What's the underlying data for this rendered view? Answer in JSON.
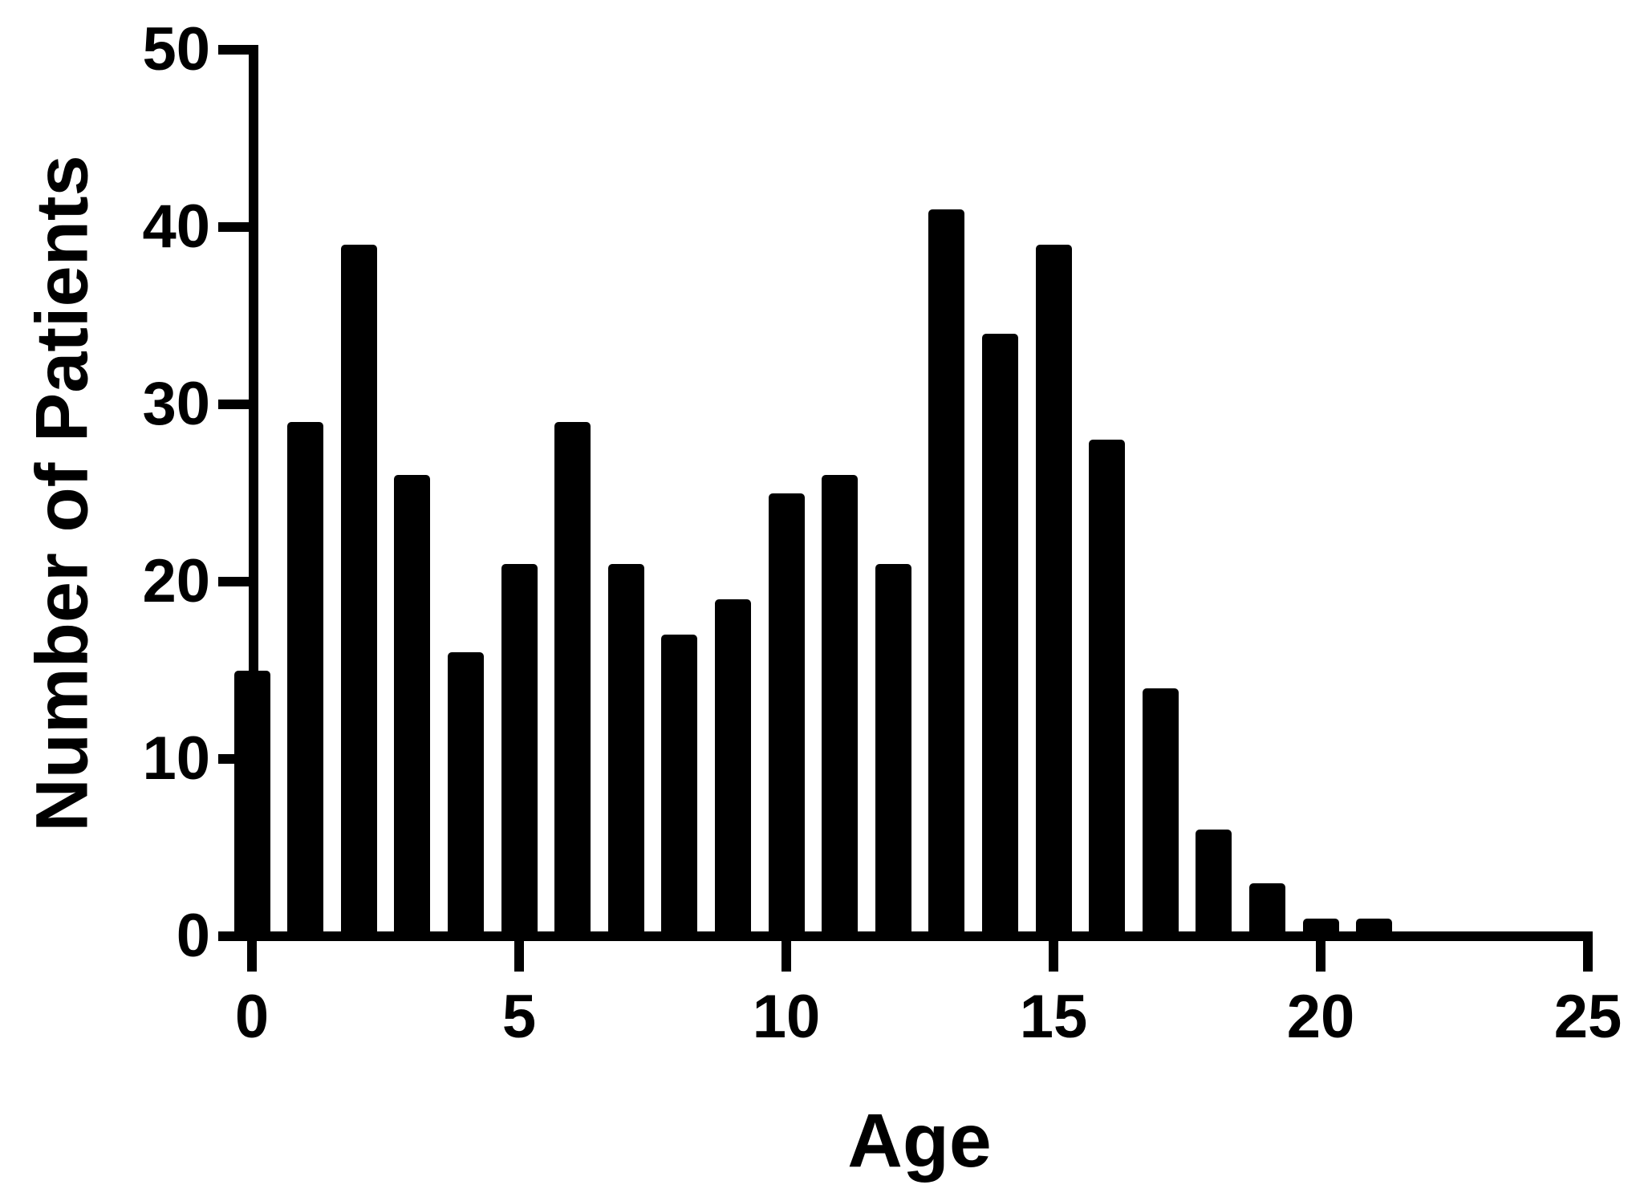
{
  "figure": {
    "background_color": "#ffffff",
    "bar_color": "#000000",
    "axis_color": "#000000",
    "text_color": "#000000"
  },
  "chart_data": {
    "type": "bar",
    "title": "",
    "xlabel": "Age",
    "ylabel": "Number of Patients",
    "x": [
      0,
      1,
      2,
      3,
      4,
      5,
      6,
      7,
      8,
      9,
      10,
      11,
      12,
      13,
      14,
      15,
      16,
      17,
      18,
      19,
      20,
      21
    ],
    "values": [
      15,
      29,
      39,
      26,
      16,
      21,
      29,
      21,
      17,
      19,
      25,
      26,
      21,
      41,
      34,
      39,
      28,
      14,
      6,
      3,
      1,
      1
    ],
    "xlim": [
      0,
      25
    ],
    "ylim": [
      0,
      50
    ],
    "x_ticks": [
      0,
      5,
      10,
      15,
      20,
      25
    ],
    "y_ticks": [
      0,
      10,
      20,
      30,
      40,
      50
    ],
    "grid": false,
    "legend_position": "none"
  }
}
